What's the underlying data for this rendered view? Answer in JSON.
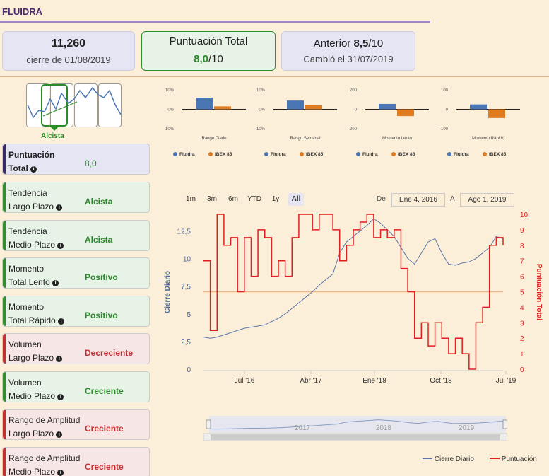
{
  "title": "FLUIDRA",
  "stats": {
    "close": {
      "value": "11,260",
      "label": "cierre de 01/08/2019"
    },
    "total": {
      "label": "Puntuación Total",
      "value": "8,0",
      "denom": "/10"
    },
    "previous": {
      "label": "Anterior",
      "value": "8,5",
      "denom": "/10",
      "changed": "Cambió el 31/07/2019"
    }
  },
  "trend_label": "Alcista",
  "cards": [
    {
      "l1": "Puntuación",
      "l2": "Total",
      "value": "8,0",
      "kind": "p"
    },
    {
      "l1": "Tendencia",
      "l2": "Largo Plazo",
      "value": "Alcista",
      "kind": "g"
    },
    {
      "l1": "Tendencia",
      "l2": "Medio Plazo",
      "value": "Alcista",
      "kind": "g"
    },
    {
      "l1": "Momento",
      "l2": "Total Lento",
      "value": "Positivo",
      "kind": "g"
    },
    {
      "l1": "Momento",
      "l2": "Total Rápido",
      "value": "Positivo",
      "kind": "g"
    },
    {
      "l1": "Volumen",
      "l2": "Largo Plazo",
      "value": "Decreciente",
      "kind": "r"
    },
    {
      "l1": "Volumen",
      "l2": "Medio Plazo",
      "value": "Creciente",
      "kind": "g"
    },
    {
      "l1": "Rango de Amplitud",
      "l2": "Largo Plazo",
      "value": "Creciente",
      "kind": "r"
    },
    {
      "l1": "Rango de Amplitud",
      "l2": "Medio Plazo",
      "value": "Creciente",
      "kind": "r"
    }
  ],
  "chart_data": [
    {
      "type": "bar",
      "title": "Rango Diario",
      "categories": [
        "Fluidra",
        "IBEX 85"
      ],
      "values": [
        6,
        1.5
      ],
      "ylim": [
        -10,
        10
      ],
      "yticks": [
        "10%",
        "0%",
        "-10%"
      ],
      "colors": [
        "#4a77b4",
        "#e07b1f"
      ]
    },
    {
      "type": "bar",
      "title": "Rango Semanal",
      "categories": [
        "Fluidra",
        "IBEX 85"
      ],
      "values": [
        4.5,
        2
      ],
      "ylim": [
        -10,
        10
      ],
      "yticks": [
        "10%",
        "0%",
        "-10%"
      ],
      "colors": [
        "#4a77b4",
        "#e07b1f"
      ]
    },
    {
      "type": "bar",
      "title": "Momento Lento",
      "categories": [
        "Fluidra",
        "IBEX 85"
      ],
      "values": [
        55,
        -70
      ],
      "ylim": [
        -200,
        200
      ],
      "yticks": [
        "200",
        "0",
        "-200"
      ],
      "colors": [
        "#4a77b4",
        "#e07b1f"
      ]
    },
    {
      "type": "bar",
      "title": "Momento Rápido",
      "categories": [
        "Fluidra",
        "IBEX 85"
      ],
      "values": [
        25,
        -45
      ],
      "ylim": [
        -100,
        100
      ],
      "yticks": [
        "100",
        "0",
        "-100"
      ],
      "colors": [
        "#4a77b4",
        "#e07b1f"
      ]
    },
    {
      "type": "line",
      "ylabel": "Cierre Diario",
      "y2label": "Puntuación Total",
      "ylim": [
        0,
        14
      ],
      "y2lim": [
        0,
        10
      ],
      "yticks": [
        "0",
        "2,5",
        "5",
        "7,5",
        "10",
        "12,5"
      ],
      "y2ticks": [
        "0",
        "1",
        "2",
        "3",
        "4",
        "5",
        "6",
        "7",
        "8",
        "9",
        "10"
      ],
      "xticks": [
        "Jul '16",
        "Abr '17",
        "Ene '18",
        "Oct '18",
        "Jul '19"
      ],
      "threshold": 5,
      "series": [
        {
          "name": "Cierre Diario",
          "color": "#5b76a8",
          "values": [
            2.9,
            2.8,
            2.9,
            3.1,
            3.3,
            3.5,
            3.7,
            3.8,
            3.9,
            4.0,
            4.3,
            4.6,
            5.0,
            5.5,
            6.0,
            6.5,
            7.0,
            7.6,
            8.1,
            8.6,
            10.5,
            11.5,
            12.0,
            12.5,
            13.0,
            13.6,
            13.2,
            12.6,
            12.0,
            11.0,
            10.0,
            9.5,
            10.5,
            11.5,
            11.8,
            10.5,
            9.5,
            9.4,
            9.6,
            9.7,
            10.0,
            10.5,
            11.0,
            12.0,
            11.8
          ]
        },
        {
          "name": "Puntuación",
          "color": "#e02020",
          "values": [
            7,
            2.5,
            10,
            8,
            8.5,
            5,
            8.5,
            6,
            9,
            8.5,
            6,
            7,
            6,
            8.5,
            10,
            10,
            9,
            10,
            10,
            9,
            7,
            8,
            9,
            9.5,
            10,
            8.5,
            9,
            8.5,
            9,
            6.5,
            5,
            2,
            3,
            1.5,
            3,
            2,
            1,
            2,
            1,
            0,
            3,
            4,
            8,
            8.5,
            8
          ]
        }
      ],
      "x_range": [
        "Ene 4, 2016",
        "Ago 1, 2019"
      ]
    }
  ],
  "ranges": [
    "1m",
    "3m",
    "6m",
    "YTD",
    "1y",
    "All"
  ],
  "date_from_label": "De",
  "date_to_label": "A",
  "date_from": "Ene 4, 2016",
  "date_to": "Ago 1, 2019",
  "navigator_years": [
    "2017",
    "2018",
    "2019"
  ],
  "legend": {
    "s1": "Cierre Diario",
    "s2": "Puntuación"
  }
}
